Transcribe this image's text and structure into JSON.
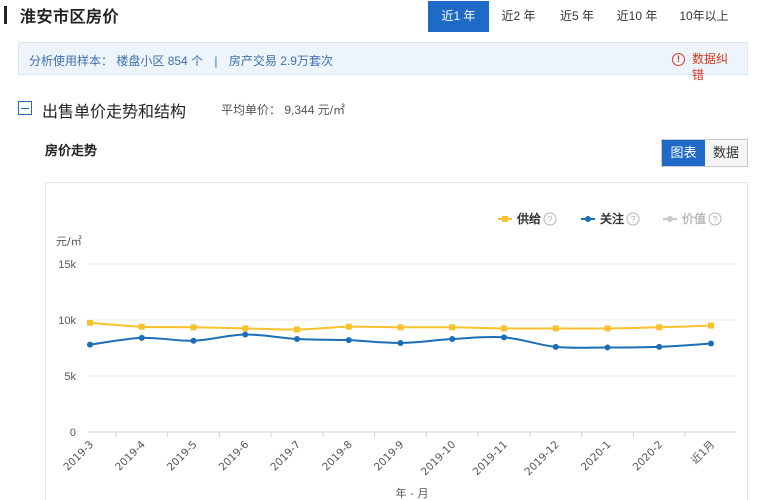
{
  "header": {
    "title": "淮安市区房价",
    "range_tabs": [
      {
        "label": "近1 年",
        "active": true
      },
      {
        "label": "近2 年",
        "active": false
      },
      {
        "label": "近5 年",
        "active": false
      },
      {
        "label": "近10 年",
        "active": false
      },
      {
        "label": "10年以上",
        "active": false
      }
    ]
  },
  "sample": {
    "prefix": "分析使用样本：",
    "listings": "楼盘小区 854 个",
    "separator": "|",
    "trades": "房产交易 2.9万套次",
    "correct_icon_glyph": "!",
    "correct_label": "数据纠错"
  },
  "section": {
    "title": "出售单价走势和结构",
    "avg_price": "平均单价： 9,344 元/㎡"
  },
  "chart_panel": {
    "title": "房价走势",
    "view_chart_label": "图表",
    "view_data_label": "数据"
  },
  "colors": {
    "accent": "#1f6ac7",
    "supply": "#f8c12d",
    "attention": "#1c6db7",
    "price_legend_disabled": "#c8c8c8",
    "error_red": "#d4361f"
  },
  "chart_data": {
    "type": "line",
    "ylabel": "元/㎡",
    "xlabel": "年 - 月",
    "ylim": [
      0,
      15000
    ],
    "y_ticks": [
      0,
      5000,
      10000,
      15000
    ],
    "y_tick_labels": [
      "0",
      "5k",
      "10k",
      "15k"
    ],
    "categories": [
      "2019-3",
      "2019-4",
      "2019-5",
      "2019-6",
      "2019-7",
      "2019-8",
      "2019-9",
      "2019-10",
      "2019-11",
      "2019-12",
      "2020-1",
      "2020-2",
      "近1月"
    ],
    "legend": [
      {
        "name": "供给",
        "color": "#f8c12d",
        "enabled": true,
        "marker": "square"
      },
      {
        "name": "关注",
        "color": "#1c6db7",
        "enabled": true,
        "marker": "circle"
      },
      {
        "name": "价值",
        "color": "#c8c8c8",
        "enabled": false,
        "marker": "circle"
      }
    ],
    "series": [
      {
        "name": "供给",
        "values": [
          9750,
          9400,
          9350,
          9250,
          9150,
          9400,
          9350,
          9350,
          9250,
          9250,
          9250,
          9350,
          9500
        ]
      },
      {
        "name": "关注",
        "values": [
          7800,
          8400,
          8150,
          8700,
          8300,
          8200,
          7950,
          8300,
          8450,
          7600,
          7550,
          7600,
          7900
        ]
      }
    ],
    "grid": "horizontal",
    "legend_position": "top-right"
  }
}
